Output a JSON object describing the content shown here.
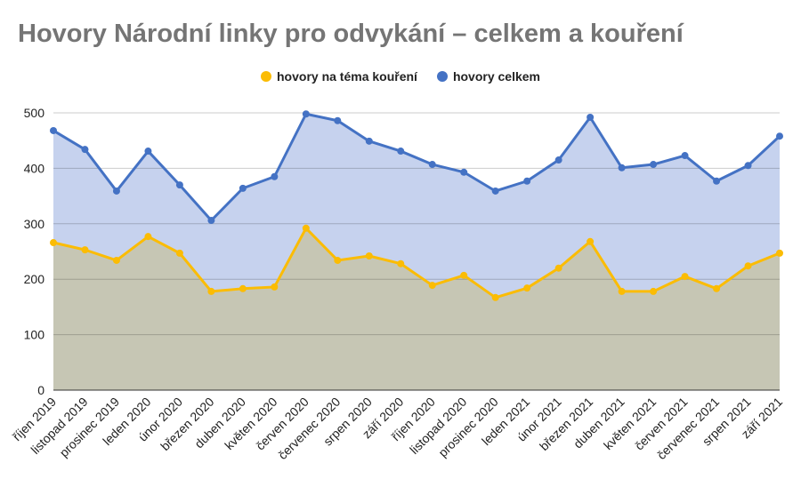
{
  "chart_data": {
    "type": "area",
    "title": "Hovory Národní linky pro odvykání – celkem a kouření",
    "xlabel": "",
    "ylabel": "",
    "ylim": [
      0,
      500
    ],
    "yticks": [
      0,
      100,
      200,
      300,
      400,
      500
    ],
    "grid": true,
    "legend_position": "top-center",
    "categories": [
      "říjen 2019",
      "listopad 2019",
      "prosinec 2019",
      "leden 2020",
      "únor 2020",
      "březen 2020",
      "duben 2020",
      "květen 2020",
      "červen 2020",
      "červenec 2020",
      "srpen 2020",
      "září 2020",
      "říjen 2020",
      "listopad 2020",
      "prosinec 2020",
      "leden 2021",
      "únor 2021",
      "březen 2021",
      "duben 2021",
      "květen 2021",
      "červen 2021",
      "červenec 2021",
      "srpen 2021",
      "září 2021"
    ],
    "series": [
      {
        "name": "hovory na téma kouření",
        "color": "#fbbc04",
        "fill": "#c6c6b4",
        "values": [
          266,
          253,
          234,
          277,
          247,
          178,
          183,
          186,
          292,
          234,
          242,
          228,
          189,
          207,
          167,
          184,
          220,
          268,
          178,
          178,
          205,
          183,
          224,
          247
        ]
      },
      {
        "name": "hovory celkem",
        "color": "#4472c4",
        "fill": "#c6d2ee",
        "values": [
          468,
          434,
          359,
          431,
          370,
          306,
          364,
          385,
          498,
          486,
          449,
          431,
          407,
          393,
          359,
          377,
          415,
          492,
          401,
          407,
          423,
          377,
          405,
          458
        ]
      }
    ]
  }
}
